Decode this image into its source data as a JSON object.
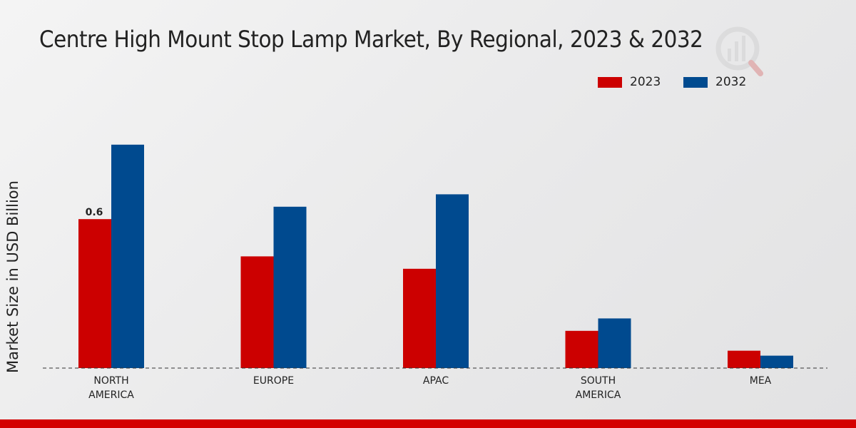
{
  "chart_data": {
    "type": "bar",
    "title": "Centre High Mount Stop Lamp Market, By Regional, 2023 & 2032",
    "xlabel": "",
    "ylabel": "Market Size in USD Billion",
    "categories": [
      "NORTH AMERICA",
      "EUROPE",
      "APAC",
      "SOUTH AMERICA",
      "MEA"
    ],
    "category_lines": [
      [
        "NORTH",
        "AMERICA"
      ],
      [
        "EUROPE"
      ],
      [
        "APAC"
      ],
      [
        "SOUTH",
        "AMERICA"
      ],
      [
        "MEA"
      ]
    ],
    "series": [
      {
        "name": "2023",
        "color": "#cc0000",
        "values": [
          0.6,
          0.45,
          0.4,
          0.15,
          0.07
        ]
      },
      {
        "name": "2032",
        "color": "#004a8f",
        "values": [
          0.9,
          0.65,
          0.7,
          0.2,
          0.05
        ]
      }
    ],
    "data_labels": [
      {
        "series": 0,
        "category": 0,
        "text": "0.6"
      }
    ],
    "ylim": [
      0,
      1.2
    ],
    "grid": false,
    "legend_position": "top-right"
  }
}
